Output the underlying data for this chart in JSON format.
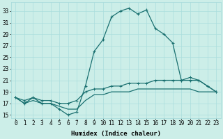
{
  "xlabel": "Humidex (Indice chaleur)",
  "x": [
    0,
    1,
    2,
    3,
    4,
    5,
    6,
    7,
    8,
    9,
    10,
    11,
    12,
    13,
    14,
    15,
    16,
    17,
    18,
    19,
    20,
    21,
    22,
    23
  ],
  "line_main": [
    18,
    17,
    18,
    17,
    17,
    16,
    15,
    15.5,
    20,
    26,
    28,
    32,
    33,
    33.5,
    32.5,
    33.2,
    30,
    29,
    27.5,
    21,
    21,
    21,
    20,
    19
  ],
  "line_upper": [
    18,
    17.5,
    18,
    17.5,
    17.5,
    17,
    17,
    17.5,
    19,
    19.5,
    19.5,
    20,
    20,
    20.5,
    20.5,
    20.5,
    21,
    21,
    21,
    21,
    21.5,
    21,
    20,
    19
  ],
  "line_lower": [
    18,
    17,
    17.5,
    17,
    17,
    16.5,
    16,
    16,
    17.5,
    18.5,
    18.5,
    19,
    19,
    19,
    19.5,
    19.5,
    19.5,
    19.5,
    19.5,
    19.5,
    19.5,
    19,
    19,
    19
  ],
  "ylim": [
    14.5,
    34.5
  ],
  "yticks": [
    15,
    17,
    19,
    21,
    23,
    25,
    27,
    29,
    31,
    33
  ],
  "xlim": [
    -0.5,
    23.5
  ],
  "bg_color": "#cceee8",
  "line_color": "#1a7070",
  "grid_color": "#aadddd",
  "label_fontsize": 6.5,
  "tick_fontsize": 5.5
}
